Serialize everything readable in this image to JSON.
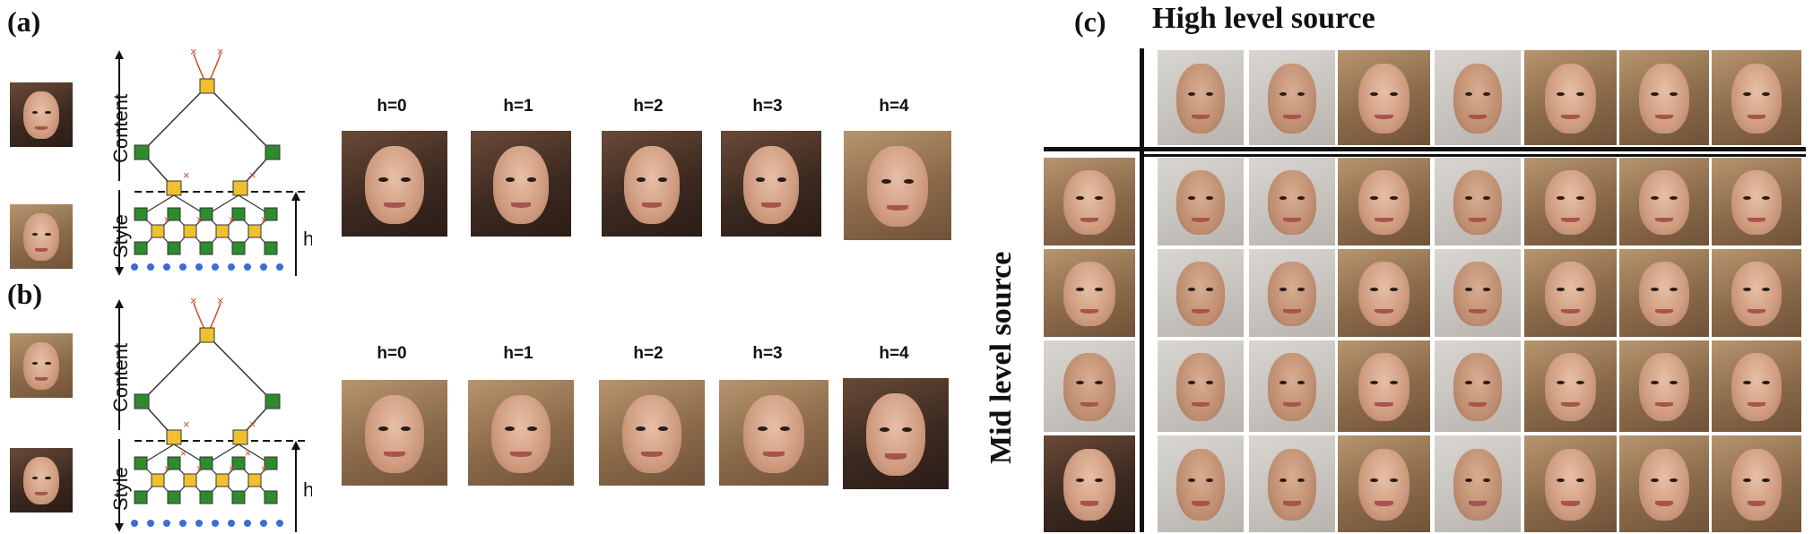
{
  "panels": {
    "a": {
      "label": "(a)"
    },
    "b": {
      "label": "(b)"
    },
    "c": {
      "label": "(c)"
    }
  },
  "diagram": {
    "content_label": "Content",
    "style_label": "Style",
    "h_label": "h"
  },
  "rows_ab": {
    "a_labels": [
      "h=0",
      "h=1",
      "h=2",
      "h=3",
      "h=4"
    ],
    "b_labels": [
      "h=0",
      "h=1",
      "h=2",
      "h=3",
      "h=4"
    ]
  },
  "grid_c": {
    "column_header": "High level source",
    "row_header": "Mid level source"
  },
  "colors": {
    "node_green": "#2e8b2e",
    "node_yellow": "#f0c030",
    "node_blue": "#3a6fd0",
    "cross_red": "#d24a2a"
  }
}
